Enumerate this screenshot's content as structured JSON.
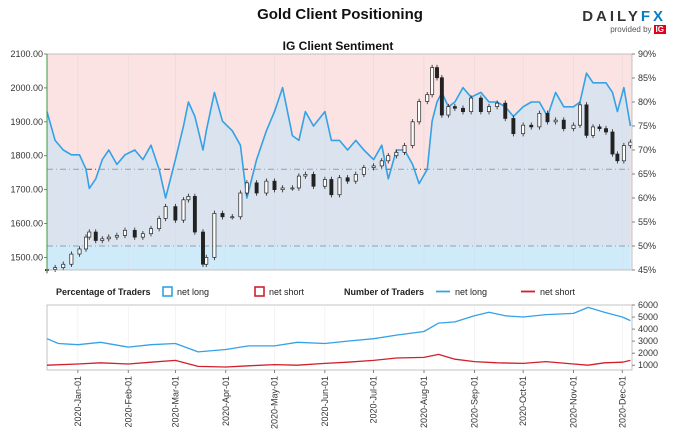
{
  "title": "Gold Client Positioning",
  "logo": {
    "word_left": "DAILY",
    "word_right": "FX",
    "provided": "provided by",
    "ig": "IG"
  },
  "subtitle": "IG Client Sentiment",
  "legend": {
    "pct_title": "Percentage of Traders",
    "pct_long": "net long",
    "pct_short": "net short",
    "num_title": "Number of Traders",
    "num_long": "net long",
    "num_short": "net short"
  },
  "colors": {
    "long": "#33a2e6",
    "short": "#d0202c",
    "bg_top": "#fbe2e3",
    "bg_bottom": "#e3f3fc",
    "candle": "#222222"
  },
  "chart_data": [
    {
      "type": "line",
      "name": "price-and-sentiment",
      "x_ticks": [
        "2020-Jan-01",
        "2020-Feb-01",
        "2020-Mar-01",
        "2020-Apr-01",
        "2020-May-01",
        "2020-Jun-01",
        "2020-Jul-01",
        "2020-Aug-01",
        "2020-Sep-01",
        "2020-Oct-01",
        "2020-Nov-01",
        "2020-Dec-01"
      ],
      "x_range": [
        "2019-Dec-13",
        "2020-Dec-07"
      ],
      "left_axis": {
        "ticks": [
          "1500.00",
          "1600.00",
          "1700.00",
          "1800.00",
          "1900.00",
          "2000.00",
          "2100.00"
        ],
        "range": [
          1463,
          2100
        ]
      },
      "right_axis": {
        "ticks": [
          "45%",
          "50%",
          "55%",
          "60%",
          "65%",
          "70%",
          "75%",
          "80%",
          "85%",
          "90%"
        ],
        "range": [
          45,
          90
        ]
      },
      "reference_lines": [
        {
          "axis": "right",
          "value": 50
        },
        {
          "axis": "right",
          "value": 66
        }
      ],
      "series": [
        {
          "name": "net long",
          "axis": "right",
          "points": [
            [
              "2019-Dec-13",
              78
            ],
            [
              "2019-Dec-18",
              72
            ],
            [
              "2019-Dec-23",
              70
            ],
            [
              "2019-Dec-28",
              69
            ],
            [
              "2020-Jan-02",
              69
            ],
            [
              "2020-Jan-06",
              66
            ],
            [
              "2020-Jan-08",
              62
            ],
            [
              "2020-Jan-12",
              64
            ],
            [
              "2020-Jan-16",
              68
            ],
            [
              "2020-Jan-20",
              70
            ],
            [
              "2020-Jan-25",
              67
            ],
            [
              "2020-Jan-30",
              69
            ],
            [
              "2020-Feb-05",
              70
            ],
            [
              "2020-Feb-10",
              68
            ],
            [
              "2020-Feb-15",
              71
            ],
            [
              "2020-Feb-20",
              66
            ],
            [
              "2020-Feb-24",
              60
            ],
            [
              "2020-Mar-01",
              68
            ],
            [
              "2020-Mar-06",
              75
            ],
            [
              "2020-Mar-09",
              80
            ],
            [
              "2020-Mar-13",
              77
            ],
            [
              "2020-Mar-18",
              70
            ],
            [
              "2020-Mar-20",
              74
            ],
            [
              "2020-Mar-25",
              82
            ],
            [
              "2020-Mar-30",
              76
            ],
            [
              "2020-Apr-05",
              74
            ],
            [
              "2020-Apr-10",
              71
            ],
            [
              "2020-Apr-14",
              60
            ],
            [
              "2020-Apr-20",
              68
            ],
            [
              "2020-Apr-26",
              74
            ],
            [
              "2020-May-01",
              78
            ],
            [
              "2020-May-06",
              83
            ],
            [
              "2020-May-12",
              73
            ],
            [
              "2020-May-16",
              72
            ],
            [
              "2020-May-20",
              78
            ],
            [
              "2020-May-25",
              75
            ],
            [
              "2020-Jun-01",
              78
            ],
            [
              "2020-Jun-05",
              72
            ],
            [
              "2020-Jun-10",
              72
            ],
            [
              "2020-Jun-15",
              70
            ],
            [
              "2020-Jun-20",
              72
            ],
            [
              "2020-Jun-25",
              70
            ],
            [
              "2020-Jul-01",
              68
            ],
            [
              "2020-Jul-06",
              71
            ],
            [
              "2020-Jul-10",
              64
            ],
            [
              "2020-Jul-15",
              70
            ],
            [
              "2020-Jul-20",
              70
            ],
            [
              "2020-Jul-25",
              67
            ],
            [
              "2020-Jul-29",
              63
            ],
            [
              "2020-Aug-03",
              66
            ],
            [
              "2020-Aug-06",
              76
            ],
            [
              "2020-Aug-09",
              80
            ],
            [
              "2020-Aug-12",
              82
            ],
            [
              "2020-Aug-16",
              79
            ],
            [
              "2020-Aug-20",
              80
            ],
            [
              "2020-Aug-25",
              83
            ],
            [
              "2020-Aug-30",
              81
            ],
            [
              "2020-Sep-05",
              82
            ],
            [
              "2020-Sep-10",
              80
            ],
            [
              "2020-Sep-15",
              80
            ],
            [
              "2020-Sep-20",
              79
            ],
            [
              "2020-Sep-25",
              77
            ],
            [
              "2020-Oct-01",
              79
            ],
            [
              "2020-Oct-06",
              80
            ],
            [
              "2020-Oct-11",
              80
            ],
            [
              "2020-Oct-16",
              77
            ],
            [
              "2020-Oct-21",
              82
            ],
            [
              "2020-Oct-26",
              79
            ],
            [
              "2020-Nov-01",
              79
            ],
            [
              "2020-Nov-05",
              80
            ],
            [
              "2020-Nov-09",
              86
            ],
            [
              "2020-Nov-13",
              84
            ],
            [
              "2020-Nov-17",
              84
            ],
            [
              "2020-Nov-21",
              84
            ],
            [
              "2020-Nov-25",
              82
            ],
            [
              "2020-Nov-28",
              78
            ],
            [
              "2020-Dec-02",
              83
            ],
            [
              "2020-Dec-06",
              75
            ]
          ]
        },
        {
          "name": "price",
          "axis": "left",
          "points": [
            [
              "2019-Dec-13",
              1465
            ],
            [
              "2019-Dec-18",
              1470
            ],
            [
              "2019-Dec-23",
              1480
            ],
            [
              "2019-Dec-28",
              1510
            ],
            [
              "2020-Jan-02",
              1525
            ],
            [
              "2020-Jan-06",
              1560
            ],
            [
              "2020-Jan-08",
              1575
            ],
            [
              "2020-Jan-12",
              1550
            ],
            [
              "2020-Jan-16",
              1555
            ],
            [
              "2020-Jan-20",
              1560
            ],
            [
              "2020-Jan-25",
              1565
            ],
            [
              "2020-Jan-30",
              1580
            ],
            [
              "2020-Feb-05",
              1560
            ],
            [
              "2020-Feb-10",
              1570
            ],
            [
              "2020-Feb-15",
              1585
            ],
            [
              "2020-Feb-20",
              1615
            ],
            [
              "2020-Feb-24",
              1650
            ],
            [
              "2020-Mar-01",
              1610
            ],
            [
              "2020-Mar-06",
              1670
            ],
            [
              "2020-Mar-09",
              1680
            ],
            [
              "2020-Mar-13",
              1575
            ],
            [
              "2020-Mar-18",
              1480
            ],
            [
              "2020-Mar-20",
              1500
            ],
            [
              "2020-Mar-25",
              1630
            ],
            [
              "2020-Mar-30",
              1620
            ],
            [
              "2020-Apr-05",
              1620
            ],
            [
              "2020-Apr-10",
              1690
            ],
            [
              "2020-Apr-14",
              1720
            ],
            [
              "2020-Apr-20",
              1690
            ],
            [
              "2020-Apr-26",
              1725
            ],
            [
              "2020-May-01",
              1700
            ],
            [
              "2020-May-06",
              1705
            ],
            [
              "2020-May-12",
              1705
            ],
            [
              "2020-May-16",
              1740
            ],
            [
              "2020-May-20",
              1745
            ],
            [
              "2020-May-25",
              1710
            ],
            [
              "2020-Jun-01",
              1730
            ],
            [
              "2020-Jun-05",
              1685
            ],
            [
              "2020-Jun-10",
              1735
            ],
            [
              "2020-Jun-15",
              1725
            ],
            [
              "2020-Jun-20",
              1745
            ],
            [
              "2020-Jun-25",
              1765
            ],
            [
              "2020-Jul-01",
              1770
            ],
            [
              "2020-Jul-06",
              1785
            ],
            [
              "2020-Jul-10",
              1800
            ],
            [
              "2020-Jul-15",
              1810
            ],
            [
              "2020-Jul-20",
              1830
            ],
            [
              "2020-Jul-25",
              1900
            ],
            [
              "2020-Jul-29",
              1960
            ],
            [
              "2020-Aug-03",
              1980
            ],
            [
              "2020-Aug-06",
              2060
            ],
            [
              "2020-Aug-09",
              2030
            ],
            [
              "2020-Aug-12",
              1920
            ],
            [
              "2020-Aug-16",
              1945
            ],
            [
              "2020-Aug-20",
              1940
            ],
            [
              "2020-Aug-25",
              1930
            ],
            [
              "2020-Aug-30",
              1970
            ],
            [
              "2020-Sep-05",
              1930
            ],
            [
              "2020-Sep-10",
              1945
            ],
            [
              "2020-Sep-15",
              1955
            ],
            [
              "2020-Sep-20",
              1910
            ],
            [
              "2020-Sep-25",
              1865
            ],
            [
              "2020-Oct-01",
              1890
            ],
            [
              "2020-Oct-06",
              1885
            ],
            [
              "2020-Oct-11",
              1925
            ],
            [
              "2020-Oct-16",
              1900
            ],
            [
              "2020-Oct-21",
              1905
            ],
            [
              "2020-Oct-26",
              1880
            ],
            [
              "2020-Nov-01",
              1890
            ],
            [
              "2020-Nov-05",
              1950
            ],
            [
              "2020-Nov-09",
              1860
            ],
            [
              "2020-Nov-13",
              1885
            ],
            [
              "2020-Nov-17",
              1880
            ],
            [
              "2020-Nov-21",
              1870
            ],
            [
              "2020-Nov-25",
              1805
            ],
            [
              "2020-Nov-28",
              1785
            ],
            [
              "2020-Dec-02",
              1830
            ],
            [
              "2020-Dec-06",
              1840
            ]
          ]
        }
      ]
    },
    {
      "type": "line",
      "name": "number-of-traders",
      "y_axis": {
        "ticks": [
          "1000",
          "2000",
          "3000",
          "4000",
          "5000",
          "6000"
        ],
        "range": [
          600,
          6000
        ]
      },
      "series": [
        {
          "name": "net long",
          "points": [
            [
              "2019-Dec-13",
              3200
            ],
            [
              "2019-Dec-20",
              2800
            ],
            [
              "2020-Jan-01",
              2700
            ],
            [
              "2020-Jan-15",
              2900
            ],
            [
              "2020-Feb-01",
              2500
            ],
            [
              "2020-Feb-15",
              2700
            ],
            [
              "2020-Mar-01",
              2800
            ],
            [
              "2020-Mar-15",
              2100
            ],
            [
              "2020-Apr-01",
              2300
            ],
            [
              "2020-Apr-15",
              2600
            ],
            [
              "2020-May-01",
              2600
            ],
            [
              "2020-May-15",
              2900
            ],
            [
              "2020-Jun-01",
              2800
            ],
            [
              "2020-Jun-15",
              3000
            ],
            [
              "2020-Jul-01",
              3200
            ],
            [
              "2020-Jul-15",
              3500
            ],
            [
              "2020-Aug-01",
              3800
            ],
            [
              "2020-Aug-10",
              4500
            ],
            [
              "2020-Aug-20",
              4600
            ],
            [
              "2020-Sep-01",
              5100
            ],
            [
              "2020-Sep-10",
              5400
            ],
            [
              "2020-Sep-20",
              5100
            ],
            [
              "2020-Oct-01",
              5000
            ],
            [
              "2020-Oct-15",
              5200
            ],
            [
              "2020-Nov-01",
              5300
            ],
            [
              "2020-Nov-10",
              5800
            ],
            [
              "2020-Nov-20",
              5400
            ],
            [
              "2020-Dec-01",
              5000
            ],
            [
              "2020-Dec-06",
              4700
            ]
          ]
        },
        {
          "name": "net short",
          "points": [
            [
              "2019-Dec-13",
              1000
            ],
            [
              "2020-Jan-01",
              1100
            ],
            [
              "2020-Jan-15",
              1200
            ],
            [
              "2020-Feb-01",
              1100
            ],
            [
              "2020-Feb-15",
              1250
            ],
            [
              "2020-Mar-01",
              1400
            ],
            [
              "2020-Mar-15",
              900
            ],
            [
              "2020-Apr-01",
              850
            ],
            [
              "2020-Apr-15",
              950
            ],
            [
              "2020-May-01",
              1050
            ],
            [
              "2020-May-15",
              1000
            ],
            [
              "2020-Jun-01",
              1150
            ],
            [
              "2020-Jun-15",
              1250
            ],
            [
              "2020-Jul-01",
              1400
            ],
            [
              "2020-Jul-15",
              1600
            ],
            [
              "2020-Aug-01",
              1650
            ],
            [
              "2020-Aug-10",
              1900
            ],
            [
              "2020-Aug-20",
              1500
            ],
            [
              "2020-Sep-01",
              1300
            ],
            [
              "2020-Sep-15",
              1200
            ],
            [
              "2020-Oct-01",
              1150
            ],
            [
              "2020-Oct-15",
              1300
            ],
            [
              "2020-Nov-01",
              1100
            ],
            [
              "2020-Nov-10",
              1000
            ],
            [
              "2020-Nov-20",
              1200
            ],
            [
              "2020-Dec-01",
              1250
            ],
            [
              "2020-Dec-06",
              1400
            ]
          ]
        }
      ]
    }
  ]
}
